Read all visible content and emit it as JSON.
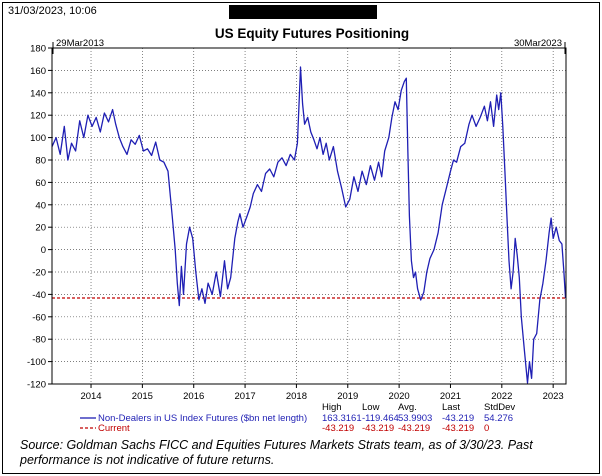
{
  "header": {
    "timestamp": "31/03/2023, 10:06",
    "redaction_color": "#000000"
  },
  "source_note": "Source: Goldman Sachs FICC and Equities Futures Markets Strats team, as of 3/30/23. Past performance is not indicative of future returns.",
  "chart_data": {
    "type": "line",
    "title": "US Equity Futures Positioning",
    "start_label": "29Mar2013",
    "end_label": "30Mar2023",
    "ylim": [
      -120,
      180
    ],
    "yticks": [
      -120,
      -100,
      -80,
      -60,
      -40,
      -20,
      0,
      20,
      40,
      60,
      80,
      100,
      120,
      140,
      160,
      180
    ],
    "xlim": [
      2013.24,
      2023.25
    ],
    "xticks": [
      2014,
      2015,
      2016,
      2017,
      2018,
      2019,
      2020,
      2021,
      2022,
      2023
    ],
    "grid": true,
    "legend_position": "bottom",
    "stats_headers": [
      "High",
      "Low",
      "Avg.",
      "Last",
      "StdDev"
    ],
    "series": [
      {
        "name": "Non-Dealers in US Index Futures ($bn net length)",
        "color": "#1f1fb4",
        "style": "solid",
        "stats": [
          "163.3161",
          "-119.464",
          "53.9903",
          "-43.219",
          "54.276"
        ],
        "points": [
          [
            2013.24,
            92
          ],
          [
            2013.32,
            100
          ],
          [
            2013.4,
            85
          ],
          [
            2013.48,
            110
          ],
          [
            2013.55,
            80
          ],
          [
            2013.62,
            95
          ],
          [
            2013.7,
            88
          ],
          [
            2013.78,
            115
          ],
          [
            2013.86,
            100
          ],
          [
            2013.94,
            120
          ],
          [
            2014.02,
            110
          ],
          [
            2014.1,
            118
          ],
          [
            2014.18,
            105
          ],
          [
            2014.26,
            122
          ],
          [
            2014.34,
            114
          ],
          [
            2014.42,
            125
          ],
          [
            2014.48,
            112
          ],
          [
            2014.55,
            100
          ],
          [
            2014.62,
            92
          ],
          [
            2014.7,
            85
          ],
          [
            2014.78,
            98
          ],
          [
            2014.86,
            94
          ],
          [
            2014.94,
            102
          ],
          [
            2015.02,
            88
          ],
          [
            2015.1,
            90
          ],
          [
            2015.18,
            84
          ],
          [
            2015.26,
            96
          ],
          [
            2015.34,
            80
          ],
          [
            2015.42,
            78
          ],
          [
            2015.5,
            70
          ],
          [
            2015.58,
            30
          ],
          [
            2015.64,
            0
          ],
          [
            2015.68,
            -30
          ],
          [
            2015.72,
            -50
          ],
          [
            2015.76,
            -15
          ],
          [
            2015.8,
            -40
          ],
          [
            2015.86,
            5
          ],
          [
            2015.92,
            20
          ],
          [
            2015.98,
            10
          ],
          [
            2016.04,
            -20
          ],
          [
            2016.1,
            -45
          ],
          [
            2016.16,
            -35
          ],
          [
            2016.22,
            -48
          ],
          [
            2016.28,
            -30
          ],
          [
            2016.36,
            -40
          ],
          [
            2016.44,
            -20
          ],
          [
            2016.52,
            -42
          ],
          [
            2016.6,
            -10
          ],
          [
            2016.66,
            -35
          ],
          [
            2016.72,
            -25
          ],
          [
            2016.8,
            10
          ],
          [
            2016.86,
            25
          ],
          [
            2016.9,
            32
          ],
          [
            2016.96,
            20
          ],
          [
            2017.04,
            30
          ],
          [
            2017.1,
            38
          ],
          [
            2017.16,
            50
          ],
          [
            2017.24,
            58
          ],
          [
            2017.32,
            52
          ],
          [
            2017.4,
            68
          ],
          [
            2017.48,
            72
          ],
          [
            2017.56,
            65
          ],
          [
            2017.64,
            78
          ],
          [
            2017.72,
            82
          ],
          [
            2017.8,
            75
          ],
          [
            2017.88,
            85
          ],
          [
            2017.96,
            80
          ],
          [
            2018.02,
            95
          ],
          [
            2018.06,
            140
          ],
          [
            2018.08,
            163
          ],
          [
            2018.12,
            130
          ],
          [
            2018.16,
            112
          ],
          [
            2018.22,
            118
          ],
          [
            2018.28,
            105
          ],
          [
            2018.34,
            98
          ],
          [
            2018.4,
            90
          ],
          [
            2018.46,
            100
          ],
          [
            2018.52,
            85
          ],
          [
            2018.58,
            95
          ],
          [
            2018.64,
            80
          ],
          [
            2018.72,
            92
          ],
          [
            2018.8,
            70
          ],
          [
            2018.88,
            55
          ],
          [
            2018.96,
            38
          ],
          [
            2019.04,
            45
          ],
          [
            2019.12,
            65
          ],
          [
            2019.2,
            52
          ],
          [
            2019.28,
            70
          ],
          [
            2019.36,
            58
          ],
          [
            2019.44,
            75
          ],
          [
            2019.52,
            62
          ],
          [
            2019.6,
            78
          ],
          [
            2019.66,
            65
          ],
          [
            2019.72,
            88
          ],
          [
            2019.8,
            100
          ],
          [
            2019.86,
            118
          ],
          [
            2019.92,
            132
          ],
          [
            2019.98,
            125
          ],
          [
            2020.04,
            142
          ],
          [
            2020.1,
            150
          ],
          [
            2020.14,
            153
          ],
          [
            2020.17,
            90
          ],
          [
            2020.2,
            30
          ],
          [
            2020.24,
            -10
          ],
          [
            2020.28,
            -25
          ],
          [
            2020.32,
            -20
          ],
          [
            2020.36,
            -35
          ],
          [
            2020.42,
            -45
          ],
          [
            2020.48,
            -38
          ],
          [
            2020.54,
            -20
          ],
          [
            2020.6,
            -8
          ],
          [
            2020.68,
            0
          ],
          [
            2020.76,
            15
          ],
          [
            2020.84,
            40
          ],
          [
            2020.92,
            55
          ],
          [
            2021.0,
            70
          ],
          [
            2021.06,
            80
          ],
          [
            2021.12,
            78
          ],
          [
            2021.2,
            92
          ],
          [
            2021.28,
            95
          ],
          [
            2021.36,
            112
          ],
          [
            2021.42,
            120
          ],
          [
            2021.5,
            110
          ],
          [
            2021.58,
            118
          ],
          [
            2021.66,
            128
          ],
          [
            2021.72,
            115
          ],
          [
            2021.78,
            132
          ],
          [
            2021.84,
            110
          ],
          [
            2021.9,
            138
          ],
          [
            2021.94,
            125
          ],
          [
            2021.98,
            140
          ],
          [
            2022.02,
            110
          ],
          [
            2022.06,
            70
          ],
          [
            2022.1,
            30
          ],
          [
            2022.14,
            -10
          ],
          [
            2022.18,
            -35
          ],
          [
            2022.22,
            -20
          ],
          [
            2022.26,
            10
          ],
          [
            2022.3,
            -5
          ],
          [
            2022.34,
            -25
          ],
          [
            2022.38,
            -60
          ],
          [
            2022.44,
            -90
          ],
          [
            2022.5,
            -119
          ],
          [
            2022.54,
            -100
          ],
          [
            2022.58,
            -115
          ],
          [
            2022.62,
            -80
          ],
          [
            2022.68,
            -75
          ],
          [
            2022.74,
            -45
          ],
          [
            2022.8,
            -30
          ],
          [
            2022.86,
            -10
          ],
          [
            2022.92,
            15
          ],
          [
            2022.96,
            28
          ],
          [
            2023.0,
            10
          ],
          [
            2023.06,
            20
          ],
          [
            2023.12,
            8
          ],
          [
            2023.17,
            5
          ],
          [
            2023.21,
            -20
          ],
          [
            2023.24,
            -43.219
          ]
        ]
      },
      {
        "name": "Current",
        "color": "#c00000",
        "style": "dashed",
        "stats": [
          "-43.219",
          "-43.219",
          "-43.219",
          "-43.219",
          "0"
        ],
        "value": -43.219
      }
    ]
  }
}
